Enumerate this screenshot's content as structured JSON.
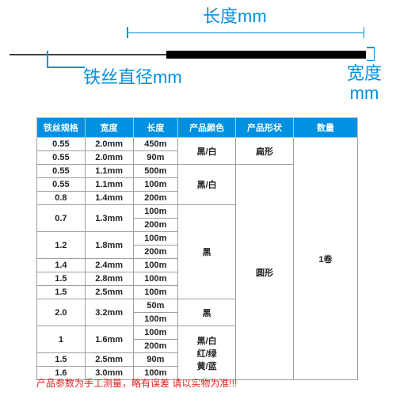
{
  "diagram": {
    "length_label": "长度mm",
    "diameter_label": "铁丝直径mm",
    "width_label_line1": "宽度",
    "width_label_line2": "mm",
    "accent_color": "#0090e0"
  },
  "table": {
    "headers": [
      "铁丝规格",
      "宽度",
      "长度",
      "产品颜色",
      "产品形状",
      "数量"
    ],
    "col_widths_pct": [
      15,
      15,
      14,
      18,
      18,
      20
    ],
    "rows": [
      {
        "spec": "0.55",
        "width": "2.0mm",
        "length": "450m",
        "spec_rs": 1,
        "width_rs": 1
      },
      {
        "spec": "0.55",
        "width": "2.0mm",
        "length": "90m",
        "spec_rs": 1,
        "width_rs": 1
      },
      {
        "spec": "0.55",
        "width": "1.1mm",
        "length": "500m",
        "spec_rs": 1,
        "width_rs": 1
      },
      {
        "spec": "0.55",
        "width": "1.1mm",
        "length": "100m",
        "spec_rs": 1,
        "width_rs": 1
      },
      {
        "spec": "0.8",
        "width": "1.4mm",
        "length": "200m",
        "spec_rs": 1,
        "width_rs": 1
      },
      {
        "spec": "0.7",
        "width": "1.3mm",
        "length": "100m",
        "spec_rs": 2,
        "width_rs": 2
      },
      {
        "length": "200m"
      },
      {
        "spec": "1.2",
        "width": "1.8mm",
        "length": "100m",
        "spec_rs": 2,
        "width_rs": 2
      },
      {
        "length": "200m"
      },
      {
        "spec": "1.4",
        "width": "2.4mm",
        "length": "100m",
        "spec_rs": 1,
        "width_rs": 1
      },
      {
        "spec": "1.5",
        "width": "2.8mm",
        "length": "100m",
        "spec_rs": 1,
        "width_rs": 1
      },
      {
        "spec": "1.5",
        "width": "2.5mm",
        "length": "100m",
        "spec_rs": 1,
        "width_rs": 1
      },
      {
        "spec": "2.0",
        "width": "3.2mm",
        "length": "50m",
        "spec_rs": 2,
        "width_rs": 2
      },
      {
        "length": "100m"
      },
      {
        "spec": "1",
        "width": "1.6mm",
        "length": "100m",
        "spec_rs": 2,
        "width_rs": 2
      },
      {
        "length": "200m"
      },
      {
        "spec": "1.5",
        "width": "2.5mm",
        "length": "90m",
        "spec_rs": 1,
        "width_rs": 1
      },
      {
        "spec": "1.6",
        "width": "3.0mm",
        "length": "100m",
        "spec_rs": 1,
        "width_rs": 1
      }
    ],
    "color_cells": [
      {
        "text": "黑/白",
        "rowspan": 2
      },
      {
        "text": "黑/白",
        "rowspan": 3
      },
      {
        "text": "黑",
        "rowspan": 7
      },
      {
        "text": "黑",
        "rowspan": 2
      },
      {
        "text": "黑/白\n红/绿\n黄/蓝",
        "rowspan": 4
      }
    ],
    "shape_cells": [
      {
        "text": "扁形",
        "rowspan": 2
      },
      {
        "text": "圆形",
        "rowspan": 16
      }
    ],
    "qty_cell": {
      "text": "1卷",
      "rowspan": 18
    }
  },
  "footer": "产品参数为手工测量，略有误差 请以实物为准!!!"
}
